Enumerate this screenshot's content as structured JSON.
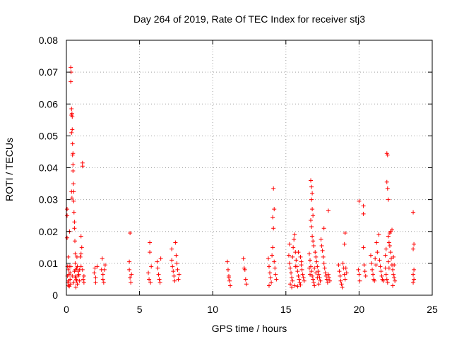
{
  "chart_data": {
    "type": "scatter",
    "title": "Day 264 of 2019, Rate Of TEC Index for receiver stj3",
    "xlabel": "GPS time / hours",
    "ylabel": "ROTI / TECUs",
    "xlim": [
      0,
      25
    ],
    "ylim": [
      0,
      0.08
    ],
    "xticks": [
      0,
      5,
      10,
      15,
      20,
      25
    ],
    "xtick_labels": [
      "0",
      "5",
      "10",
      "15",
      "20",
      "25"
    ],
    "yticks": [
      0,
      0.01,
      0.02,
      0.03,
      0.04,
      0.05,
      0.06,
      0.07,
      0.08
    ],
    "ytick_labels": [
      "0",
      "0.01",
      "0.02",
      "0.03",
      "0.04",
      "0.05",
      "0.06",
      "0.07",
      "0.08"
    ],
    "grid": true,
    "marker": "+",
    "color": "#ff0000",
    "series": [
      {
        "name": "ROTI",
        "points": [
          [
            0.05,
            0.025
          ],
          [
            0.05,
            0.027
          ],
          [
            0.05,
            0.018
          ],
          [
            0.08,
            0.009
          ],
          [
            0.08,
            0.006
          ],
          [
            0.1,
            0.004
          ],
          [
            0.12,
            0.012
          ],
          [
            0.12,
            0.008
          ],
          [
            0.15,
            0.003
          ],
          [
            0.15,
            0.0045
          ],
          [
            0.18,
            0.0065
          ],
          [
            0.2,
            0.0028
          ],
          [
            0.2,
            0.009
          ],
          [
            0.22,
            0.02
          ],
          [
            0.25,
            0.007
          ],
          [
            0.25,
            0.005
          ],
          [
            0.28,
            0.0035
          ],
          [
            0.3,
            0.0715
          ],
          [
            0.3,
            0.067
          ],
          [
            0.32,
            0.07
          ],
          [
            0.35,
            0.0565
          ],
          [
            0.35,
            0.051
          ],
          [
            0.35,
            0.0585
          ],
          [
            0.38,
            0.057
          ],
          [
            0.4,
            0.052
          ],
          [
            0.4,
            0.056
          ],
          [
            0.42,
            0.044
          ],
          [
            0.42,
            0.0475
          ],
          [
            0.45,
            0.0445
          ],
          [
            0.45,
            0.041
          ],
          [
            0.45,
            0.039
          ],
          [
            0.48,
            0.035
          ],
          [
            0.5,
            0.0325
          ],
          [
            0.5,
            0.0295
          ],
          [
            0.52,
            0.026
          ],
          [
            0.55,
            0.023
          ],
          [
            0.55,
            0.021
          ],
          [
            0.58,
            0.017
          ],
          [
            0.35,
            0.0325
          ],
          [
            0.38,
            0.0305
          ],
          [
            0.6,
            0.013
          ],
          [
            0.6,
            0.01
          ],
          [
            0.62,
            0.008
          ],
          [
            0.65,
            0.006
          ],
          [
            0.68,
            0.005
          ],
          [
            0.7,
            0.0045
          ],
          [
            0.72,
            0.012
          ],
          [
            0.75,
            0.0035
          ],
          [
            0.3,
            0.009
          ],
          [
            0.4,
            0.006
          ],
          [
            0.5,
            0.004
          ],
          [
            0.55,
            0.0075
          ],
          [
            0.65,
            0.0025
          ],
          [
            0.7,
            0.0085
          ],
          [
            0.8,
            0.006
          ],
          [
            0.85,
            0.0065
          ],
          [
            0.9,
            0.0045
          ],
          [
            0.95,
            0.012
          ],
          [
            1.0,
            0.0185
          ],
          [
            1.0,
            0.013
          ],
          [
            1.05,
            0.015
          ],
          [
            1.1,
            0.008
          ],
          [
            1.15,
            0.005
          ],
          [
            1.1,
            0.0415
          ],
          [
            1.1,
            0.0405
          ],
          [
            1.2,
            0.006
          ],
          [
            1.2,
            0.004
          ],
          [
            1.0,
            0.009
          ],
          [
            0.9,
            0.008
          ],
          [
            0.8,
            0.0075
          ],
          [
            0.75,
            0.009
          ],
          [
            0.6,
            0.0055
          ],
          [
            1.9,
            0.007
          ],
          [
            2.0,
            0.0055
          ],
          [
            2.0,
            0.004
          ],
          [
            2.1,
            0.009
          ],
          [
            1.95,
            0.0085
          ],
          [
            2.4,
            0.008
          ],
          [
            2.45,
            0.0115
          ],
          [
            2.5,
            0.0065
          ],
          [
            2.5,
            0.005
          ],
          [
            2.55,
            0.004
          ],
          [
            2.6,
            0.008
          ],
          [
            2.65,
            0.0095
          ],
          [
            4.3,
            0.0105
          ],
          [
            4.3,
            0.008
          ],
          [
            4.35,
            0.0195
          ],
          [
            4.35,
            0.0055
          ],
          [
            4.4,
            0.004
          ],
          [
            4.45,
            0.0065
          ],
          [
            5.6,
            0.007
          ],
          [
            5.65,
            0.005
          ],
          [
            5.7,
            0.0165
          ],
          [
            5.7,
            0.0135
          ],
          [
            5.75,
            0.004
          ],
          [
            5.8,
            0.009
          ],
          [
            6.2,
            0.0105
          ],
          [
            6.25,
            0.0085
          ],
          [
            6.3,
            0.0065
          ],
          [
            6.35,
            0.005
          ],
          [
            6.4,
            0.004
          ],
          [
            6.45,
            0.0115
          ],
          [
            7.2,
            0.0145
          ],
          [
            7.2,
            0.011
          ],
          [
            7.25,
            0.009
          ],
          [
            7.3,
            0.0075
          ],
          [
            7.35,
            0.006
          ],
          [
            7.4,
            0.0045
          ],
          [
            7.45,
            0.0165
          ],
          [
            7.5,
            0.0125
          ],
          [
            7.55,
            0.01
          ],
          [
            7.6,
            0.008
          ],
          [
            7.65,
            0.005
          ],
          [
            7.7,
            0.0065
          ],
          [
            11.0,
            0.0105
          ],
          [
            11.05,
            0.008
          ],
          [
            11.1,
            0.006
          ],
          [
            11.15,
            0.0045
          ],
          [
            11.2,
            0.003
          ],
          [
            11.1,
            0.0055
          ],
          [
            12.1,
            0.0115
          ],
          [
            12.15,
            0.0085
          ],
          [
            12.2,
            0.008
          ],
          [
            12.25,
            0.005
          ],
          [
            12.3,
            0.0035
          ],
          [
            13.8,
            0.0115
          ],
          [
            13.85,
            0.009
          ],
          [
            13.9,
            0.007
          ],
          [
            13.95,
            0.0055
          ],
          [
            14.0,
            0.004
          ],
          [
            14.05,
            0.0125
          ],
          [
            14.1,
            0.015
          ],
          [
            14.1,
            0.0245
          ],
          [
            14.15,
            0.0335
          ],
          [
            14.2,
            0.027
          ],
          [
            14.15,
            0.021
          ],
          [
            14.2,
            0.0105
          ],
          [
            14.25,
            0.0085
          ],
          [
            14.3,
            0.0065
          ],
          [
            14.35,
            0.005
          ],
          [
            13.85,
            0.003
          ],
          [
            15.2,
            0.0125
          ],
          [
            15.25,
            0.01
          ],
          [
            15.3,
            0.0085
          ],
          [
            15.35,
            0.007
          ],
          [
            15.4,
            0.0055
          ],
          [
            15.45,
            0.0045
          ],
          [
            15.5,
            0.015
          ],
          [
            15.55,
            0.0175
          ],
          [
            15.6,
            0.019
          ],
          [
            15.65,
            0.0135
          ],
          [
            15.7,
            0.011
          ],
          [
            15.75,
            0.009
          ],
          [
            15.8,
            0.0075
          ],
          [
            15.85,
            0.006
          ],
          [
            15.9,
            0.005
          ],
          [
            15.95,
            0.004
          ],
          [
            16.0,
            0.012
          ],
          [
            16.05,
            0.0095
          ],
          [
            16.1,
            0.008
          ],
          [
            16.15,
            0.0065
          ],
          [
            16.2,
            0.0055
          ],
          [
            16.25,
            0.0045
          ],
          [
            15.3,
            0.0035
          ],
          [
            15.4,
            0.0025
          ],
          [
            15.6,
            0.003
          ],
          [
            15.8,
            0.0028
          ],
          [
            16.0,
            0.0032
          ],
          [
            15.25,
            0.016
          ],
          [
            15.45,
            0.012
          ],
          [
            15.65,
            0.009
          ],
          [
            15.85,
            0.0135
          ],
          [
            16.05,
            0.0105
          ],
          [
            16.7,
            0.036
          ],
          [
            16.75,
            0.034
          ],
          [
            16.8,
            0.032
          ],
          [
            16.75,
            0.03
          ],
          [
            16.8,
            0.027
          ],
          [
            16.85,
            0.025
          ],
          [
            16.7,
            0.0235
          ],
          [
            16.75,
            0.0215
          ],
          [
            16.8,
            0.0185
          ],
          [
            16.85,
            0.017
          ],
          [
            16.9,
            0.0155
          ],
          [
            16.6,
            0.013
          ],
          [
            16.65,
            0.011
          ],
          [
            16.7,
            0.009
          ],
          [
            16.75,
            0.0075
          ],
          [
            16.8,
            0.006
          ],
          [
            16.85,
            0.005
          ],
          [
            16.9,
            0.004
          ],
          [
            16.95,
            0.003
          ],
          [
            17.0,
            0.0135
          ],
          [
            17.05,
            0.012
          ],
          [
            17.1,
            0.0105
          ],
          [
            17.15,
            0.009
          ],
          [
            17.2,
            0.0075
          ],
          [
            17.25,
            0.0065
          ],
          [
            17.3,
            0.0055
          ],
          [
            17.35,
            0.0045
          ],
          [
            17.4,
            0.0175
          ],
          [
            17.45,
            0.0155
          ],
          [
            17.5,
            0.014
          ],
          [
            17.55,
            0.012
          ],
          [
            17.6,
            0.01
          ],
          [
            17.65,
            0.0085
          ],
          [
            17.7,
            0.007
          ],
          [
            17.75,
            0.006
          ],
          [
            17.8,
            0.005
          ],
          [
            17.85,
            0.004
          ],
          [
            17.9,
            0.0265
          ],
          [
            17.6,
            0.021
          ],
          [
            17.9,
            0.0065
          ],
          [
            17.95,
            0.0055
          ],
          [
            18.0,
            0.0045
          ],
          [
            16.6,
            0.0085
          ],
          [
            16.65,
            0.0065
          ],
          [
            16.95,
            0.0085
          ],
          [
            17.05,
            0.007
          ],
          [
            17.15,
            0.0055
          ],
          [
            17.25,
            0.0035
          ],
          [
            18.6,
            0.0095
          ],
          [
            18.65,
            0.0075
          ],
          [
            18.7,
            0.006
          ],
          [
            18.75,
            0.0045
          ],
          [
            18.8,
            0.0035
          ],
          [
            18.85,
            0.0025
          ],
          [
            18.9,
            0.01
          ],
          [
            18.95,
            0.0085
          ],
          [
            19.0,
            0.0065
          ],
          [
            19.05,
            0.005
          ],
          [
            19.0,
            0.016
          ],
          [
            19.05,
            0.0195
          ],
          [
            19.1,
            0.0085
          ],
          [
            19.15,
            0.007
          ],
          [
            19.95,
            0.008
          ],
          [
            20.0,
            0.0065
          ],
          [
            20.05,
            0.0045
          ],
          [
            20.0,
            0.0295
          ],
          [
            20.3,
            0.028
          ],
          [
            20.3,
            0.0255
          ],
          [
            20.3,
            0.015
          ],
          [
            20.35,
            0.0095
          ],
          [
            20.4,
            0.0075
          ],
          [
            20.45,
            0.006
          ],
          [
            20.8,
            0.0125
          ],
          [
            20.85,
            0.01
          ],
          [
            20.9,
            0.008
          ],
          [
            20.95,
            0.0065
          ],
          [
            21.0,
            0.005
          ],
          [
            21.05,
            0.0045
          ],
          [
            21.1,
            0.0115
          ],
          [
            21.15,
            0.0095
          ],
          [
            21.2,
            0.0165
          ],
          [
            21.25,
            0.0135
          ],
          [
            21.35,
            0.019
          ],
          [
            21.4,
            0.011
          ],
          [
            21.45,
            0.009
          ],
          [
            21.5,
            0.0075
          ],
          [
            21.55,
            0.006
          ],
          [
            21.6,
            0.005
          ],
          [
            21.65,
            0.0045
          ],
          [
            21.8,
            0.0125
          ],
          [
            21.85,
            0.0145
          ],
          [
            21.9,
            0.0445
          ],
          [
            21.95,
            0.044
          ],
          [
            21.9,
            0.0355
          ],
          [
            21.95,
            0.0335
          ],
          [
            22.0,
            0.03
          ],
          [
            22.0,
            0.0185
          ],
          [
            22.05,
            0.0165
          ],
          [
            22.1,
            0.0195
          ],
          [
            22.15,
            0.02
          ],
          [
            22.1,
            0.0155
          ],
          [
            22.15,
            0.0135
          ],
          [
            22.2,
            0.0115
          ],
          [
            22.25,
            0.0095
          ],
          [
            22.3,
            0.008
          ],
          [
            22.35,
            0.0065
          ],
          [
            22.4,
            0.0055
          ],
          [
            22.45,
            0.0045
          ],
          [
            22.0,
            0.0105
          ],
          [
            22.05,
            0.0085
          ],
          [
            21.8,
            0.0085
          ],
          [
            21.85,
            0.0065
          ],
          [
            21.9,
            0.005
          ],
          [
            21.95,
            0.004
          ],
          [
            22.25,
            0.0205
          ],
          [
            22.35,
            0.012
          ],
          [
            22.4,
            0.0095
          ],
          [
            22.3,
            0.003
          ],
          [
            23.7,
            0.026
          ],
          [
            23.75,
            0.016
          ],
          [
            23.7,
            0.0145
          ],
          [
            23.75,
            0.008
          ],
          [
            23.7,
            0.0065
          ],
          [
            23.75,
            0.005
          ],
          [
            23.7,
            0.004
          ]
        ]
      }
    ]
  }
}
